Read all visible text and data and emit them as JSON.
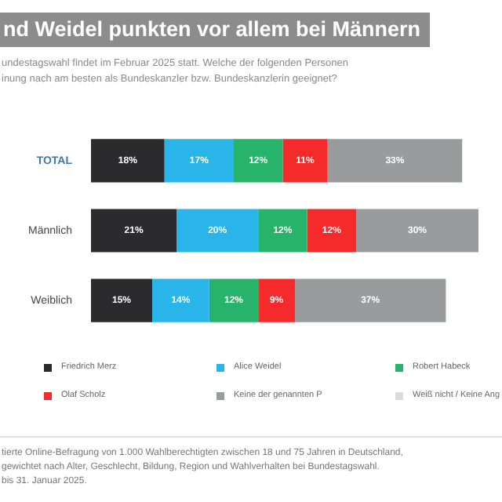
{
  "chart_data": {
    "type": "bar",
    "orientation": "horizontal",
    "stacked": true,
    "legend": "bottom",
    "title": "nd Weidel punkten vor allem bei Männern",
    "subtitle": "undestagswahl findet im Februar 2025 statt. Welche der folgenden Personen\ninung nach am besten als Bundeskanzler bzw. Bundeskanzlerin geeignet?",
    "categories": [
      "TOTAL",
      "Männlich",
      "Weiblich"
    ],
    "series": [
      {
        "name": "Friedrich Merz",
        "color": "#2b2b2d",
        "values": [
          18,
          21,
          15
        ],
        "value_labels": [
          "18%",
          "21%",
          "15%"
        ]
      },
      {
        "name": "Alice Weidel",
        "color": "#29b5ea",
        "values": [
          17,
          20,
          14
        ],
        "value_labels": [
          "17%",
          "20%",
          "14%"
        ]
      },
      {
        "name": "Robert Habeck",
        "color": "#27b36a",
        "values": [
          12,
          12,
          12
        ],
        "value_labels": [
          "12%",
          "12%",
          "12%"
        ]
      },
      {
        "name": "Olaf Scholz",
        "color": "#f52a2a",
        "values": [
          11,
          12,
          9
        ],
        "value_labels": [
          "11%",
          "12%",
          "9%"
        ]
      },
      {
        "name": "Keine der genannten P",
        "color": "#9a9b9d",
        "values": [
          33,
          30,
          37
        ],
        "value_labels": [
          "33%",
          "30%",
          "37%"
        ]
      },
      {
        "name": "Weiß nicht / Keine Ang",
        "color": "#dcdcdc",
        "values": [
          null,
          null,
          null
        ]
      }
    ],
    "annotations": [
      "tierte Online-Befragung von 1.000 Wahlberechtigten zwischen 18 und 75 Jahren in Deutschland,\ngewichtet nach Alter, Geschlecht, Bildung, Region und Wahlverhalten bei Bundestagswahl.\nbis 31. Januar 2025."
    ]
  }
}
